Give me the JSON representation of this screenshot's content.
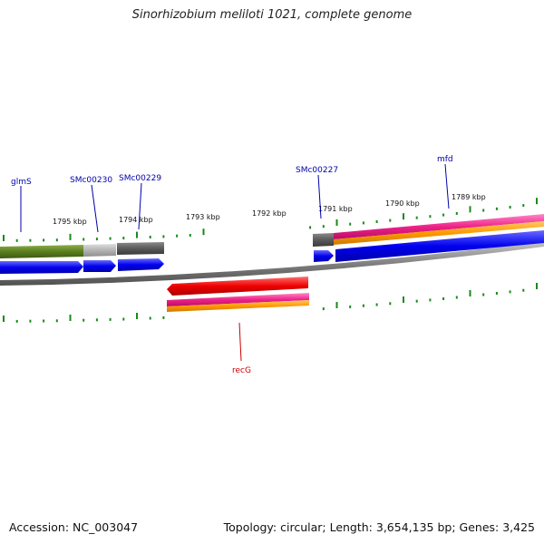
{
  "title": "Sinorhizobium meliloti 1021, complete genome",
  "footer": {
    "accession": "Accession: NC_003047",
    "stats": "Topology: circular; Length: 3,654,135 bp; Genes: 3,425"
  },
  "ruler": {
    "unit": "kbp",
    "labels": [
      "1795 kbp",
      "1794 kbp",
      "1793 kbp",
      "1792 kbp",
      "1791 kbp",
      "1790 kbp",
      "1789 kbp"
    ]
  },
  "gene_labels": {
    "glmS": "glmS",
    "SMc00230": "SMc00230",
    "SMc00229": "SMc00229",
    "SMc00227": "SMc00227",
    "mfd": "mfd",
    "recG": "recG"
  },
  "colors": {
    "backbone": "#808080",
    "gene_forward": "#0000ee",
    "gene_reverse": "#ee0000",
    "cds_green": "#5a7e1e",
    "cds_light_gray": "#b4b4b4",
    "cds_dark_gray": "#5a5a5a",
    "feature_pink": "#ee2288",
    "feature_orange": "#ff9900",
    "tick_green": "#1a8a1a",
    "label_blue": "#0000aa",
    "label_red": "#cc0000"
  }
}
